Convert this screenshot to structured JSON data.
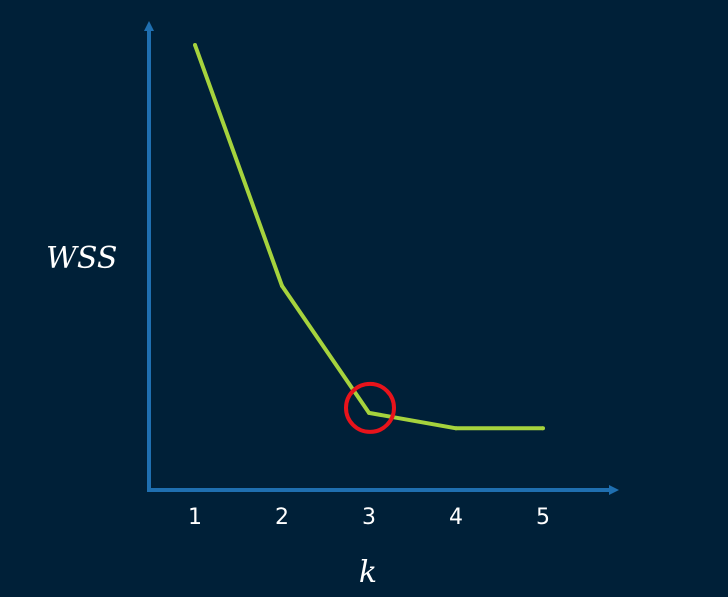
{
  "chart_data": {
    "type": "line",
    "title": "",
    "xlabel": "k",
    "ylabel": "WSS",
    "categories": [
      "1",
      "2",
      "3",
      "4",
      "5"
    ],
    "x": [
      1,
      2,
      3,
      4,
      5
    ],
    "series": [
      {
        "values": [
          100,
          45,
          16,
          12.5,
          12.5
        ]
      }
    ],
    "xlim": [
      0.5,
      5.8
    ],
    "ylim": [
      0,
      105
    ],
    "highlight": {
      "x": 3,
      "y": 16,
      "marker": "circle"
    },
    "grid": false,
    "y_tick_labels_shown": false,
    "colors": {
      "background": "#002038",
      "axis": "#1f6fb0",
      "line": "#a6d33d",
      "highlight": "#e8131b",
      "text": "#ffffff"
    }
  }
}
